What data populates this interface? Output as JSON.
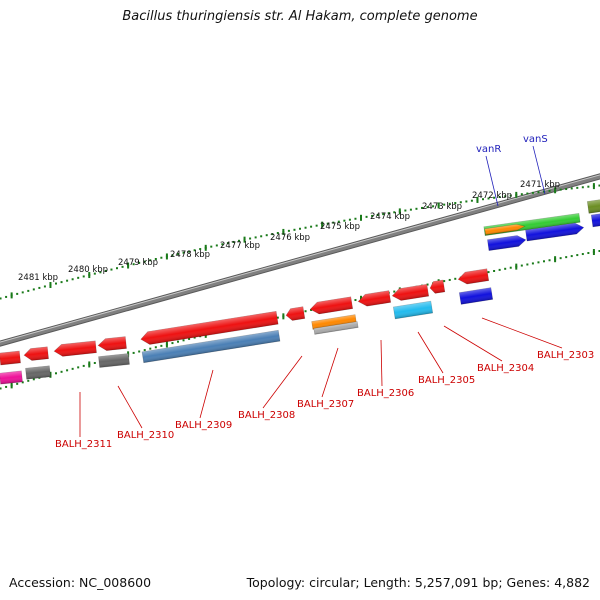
{
  "title": "Bacillus thuringiensis str. Al Hakam, complete genome",
  "accession": "Accession: NC_008600",
  "stats": "Topology: circular; Length: 5,257,091 bp; Genes: 4,882",
  "colors": {
    "backbone": "#808080",
    "tick_dots": "#1a7a1a",
    "gene_red": "#ee1111",
    "gene_blue": "#1111dd",
    "gene_green": "#33cc33",
    "gene_orange": "#ff8800",
    "gene_steelblue": "#4a7fb5",
    "gene_cyan": "#22bbee",
    "gene_gray": "#666666",
    "gene_magenta": "#ee1199",
    "gene_olive": "#6b8e23",
    "label_red": "#cc0000",
    "label_blue": "#2222bb"
  },
  "kbp_labels": [
    "2481 kbp",
    "2480 kbp",
    "2479 kbp",
    "2478 kbp",
    "2477 kbp",
    "2476 kbp",
    "2475 kbp",
    "2474 kbp",
    "2473 kbp",
    "2472 kbp",
    "2471 kbp"
  ],
  "gene_names": [
    "vanR",
    "vanS"
  ],
  "locus_tags": [
    "BALH_2311",
    "BALH_2310",
    "BALH_2309",
    "BALH_2308",
    "BALH_2307",
    "BALH_2306",
    "BALH_2305",
    "BALH_2304",
    "BALH_2303"
  ]
}
